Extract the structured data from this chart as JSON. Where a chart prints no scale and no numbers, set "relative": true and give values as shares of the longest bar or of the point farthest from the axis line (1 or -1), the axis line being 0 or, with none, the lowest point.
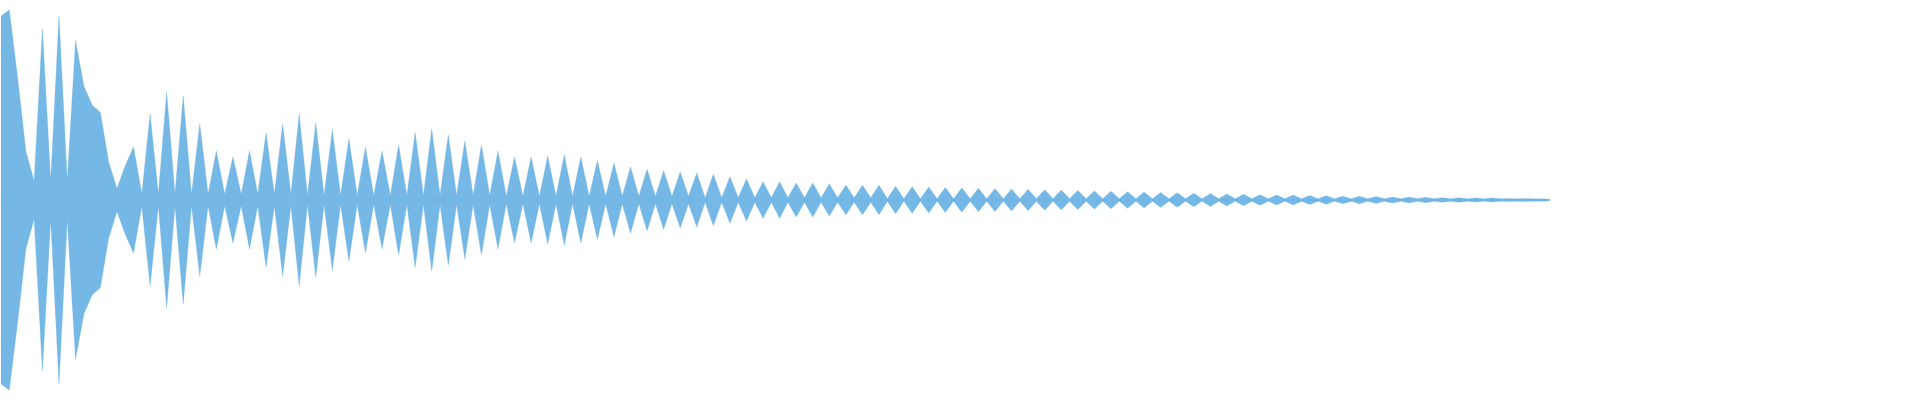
{
  "chart_data": {
    "type": "area",
    "relative": true,
    "legend": false,
    "tick_labels": false,
    "ref_lines": [
      {
        "axis": "y",
        "value": 0,
        "color": "#b4d6ef"
      }
    ],
    "categories": [
      null,
      null,
      null,
      null,
      null,
      null,
      null,
      null,
      null,
      null,
      null,
      null,
      null,
      null,
      null,
      null,
      null,
      null,
      null,
      null,
      null,
      null,
      null,
      null,
      null,
      null,
      null,
      null,
      null,
      null,
      null,
      null,
      null,
      null,
      null,
      null,
      null,
      null,
      null,
      null,
      null,
      null,
      null,
      null,
      null,
      null,
      null,
      null,
      null,
      null,
      null,
      null,
      null,
      null,
      null,
      null,
      null,
      null,
      null,
      null,
      null,
      null,
      null,
      null,
      null,
      null,
      null,
      null,
      null,
      null,
      null,
      null,
      null,
      null,
      null,
      null,
      null,
      null,
      null,
      null,
      null,
      null,
      null,
      null,
      null,
      null,
      null,
      null,
      null,
      null,
      null,
      null,
      null,
      null,
      null,
      null,
      null,
      null,
      null,
      null,
      null,
      null,
      null,
      null,
      null,
      null,
      null,
      null,
      null,
      null,
      null,
      null,
      null,
      null,
      null,
      null,
      null,
      null,
      null,
      null,
      null,
      null,
      null,
      null,
      null,
      null,
      null,
      null,
      null,
      null,
      null,
      null,
      null,
      null,
      null,
      null,
      null,
      null,
      null,
      null,
      null,
      null,
      null,
      null,
      null,
      null,
      null,
      null,
      null,
      null,
      null,
      null,
      null,
      null,
      null,
      null,
      null,
      null,
      null,
      null,
      null,
      null,
      null,
      null,
      null,
      null,
      null,
      null,
      null,
      null,
      null,
      null,
      null,
      null,
      null,
      null,
      null,
      null,
      null,
      null,
      null,
      null,
      null,
      null,
      null,
      null,
      null,
      null
    ],
    "series": [
      {
        "color": "#62aee3",
        "values": [
          0.968,
          1,
          0.646,
          0.258,
          0.1,
          0.9,
          0.1,
          0.968,
          0.1,
          0.84,
          0.6,
          0.5,
          0.46,
          0.2,
          0.06,
          0.18,
          0.28,
          0.032,
          0.452,
          0.03,
          0.568,
          0.03,
          0.548,
          0.03,
          0.4,
          0.03,
          0.258,
          0.03,
          0.226,
          0.03,
          0.258,
          0.03,
          0.354,
          0.03,
          0.4,
          0.03,
          0.452,
          0.024,
          0.406,
          0.024,
          0.368,
          0.024,
          0.322,
          0.024,
          0.278,
          0.024,
          0.258,
          0.024,
          0.29,
          0.024,
          0.354,
          0.024,
          0.374,
          0.024,
          0.342,
          0.024,
          0.31,
          0.024,
          0.29,
          0.024,
          0.258,
          0.02,
          0.226,
          0.02,
          0.226,
          0.02,
          0.232,
          0.02,
          0.238,
          0.02,
          0.226,
          0.02,
          0.206,
          0.02,
          0.194,
          0.02,
          0.174,
          0.02,
          0.162,
          0.02,
          0.154,
          0.02,
          0.148,
          0.02,
          0.142,
          0.012,
          0.136,
          0.012,
          0.122,
          0.012,
          0.11,
          0.012,
          0.096,
          0.012,
          0.096,
          0.012,
          0.09,
          0.012,
          0.09,
          0.012,
          0.084,
          0.012,
          0.078,
          0.012,
          0.078,
          0.012,
          0.078,
          0.006,
          0.072,
          0.006,
          0.07,
          0.006,
          0.068,
          0.006,
          0.066,
          0.006,
          0.064,
          0.006,
          0.062,
          0.006,
          0.06,
          0.006,
          0.058,
          0.006,
          0.056,
          0.006,
          0.054,
          0.006,
          0.052,
          0.006,
          0.05,
          0.006,
          0.048,
          0.006,
          0.046,
          0.006,
          0.044,
          0.006,
          0.042,
          0.006,
          0.04,
          0.006,
          0.038,
          0.006,
          0.036,
          0.006,
          0.034,
          0.006,
          0.032,
          0.006,
          0.03,
          0.006,
          0.028,
          0.006,
          0.026,
          0.006,
          0.026,
          0.006,
          0.024,
          0.006,
          0.022,
          0.006,
          0.02,
          0.006,
          0.02,
          0.006,
          0.018,
          0.006,
          0.016,
          0.006,
          0.016,
          0.006,
          0.014,
          0.006,
          0.012,
          0.006,
          0.012,
          0.006,
          0.01,
          0.006,
          0.01,
          0.006,
          0.008,
          0.006,
          0.008,
          0.006,
          0.006,
          0.004
        ]
      },
      {
        "color": "#62aee3",
        "values": [
          -0.968,
          -1,
          -0.646,
          -0.258,
          -0.1,
          -0.9,
          -0.1,
          -0.968,
          -0.1,
          -0.84,
          -0.6,
          -0.5,
          -0.46,
          -0.2,
          -0.06,
          -0.18,
          -0.28,
          -0.032,
          -0.452,
          -0.03,
          -0.568,
          -0.03,
          -0.548,
          -0.03,
          -0.4,
          -0.03,
          -0.258,
          -0.03,
          -0.226,
          -0.03,
          -0.258,
          -0.03,
          -0.354,
          -0.03,
          -0.4,
          -0.03,
          -0.452,
          -0.024,
          -0.406,
          -0.024,
          -0.368,
          -0.024,
          -0.322,
          -0.024,
          -0.278,
          -0.024,
          -0.258,
          -0.024,
          -0.29,
          -0.024,
          -0.354,
          -0.024,
          -0.374,
          -0.024,
          -0.342,
          -0.024,
          -0.31,
          -0.024,
          -0.29,
          -0.024,
          -0.258,
          -0.02,
          -0.226,
          -0.02,
          -0.226,
          -0.02,
          -0.232,
          -0.02,
          -0.238,
          -0.02,
          -0.226,
          -0.02,
          -0.206,
          -0.02,
          -0.194,
          -0.02,
          -0.174,
          -0.02,
          -0.162,
          -0.02,
          -0.154,
          -0.02,
          -0.148,
          -0.02,
          -0.142,
          -0.012,
          -0.136,
          -0.012,
          -0.122,
          -0.012,
          -0.11,
          -0.012,
          -0.096,
          -0.012,
          -0.096,
          -0.012,
          -0.09,
          -0.012,
          -0.09,
          -0.012,
          -0.084,
          -0.012,
          -0.078,
          -0.012,
          -0.078,
          -0.012,
          -0.078,
          -0.006,
          -0.072,
          -0.006,
          -0.07,
          -0.006,
          -0.068,
          -0.006,
          -0.066,
          -0.006,
          -0.064,
          -0.006,
          -0.062,
          -0.006,
          -0.06,
          -0.006,
          -0.058,
          -0.006,
          -0.056,
          -0.006,
          -0.054,
          -0.006,
          -0.052,
          -0.006,
          -0.05,
          -0.006,
          -0.048,
          -0.006,
          -0.046,
          -0.006,
          -0.044,
          -0.006,
          -0.042,
          -0.006,
          -0.04,
          -0.006,
          -0.038,
          -0.006,
          -0.036,
          -0.006,
          -0.034,
          -0.006,
          -0.032,
          -0.006,
          -0.03,
          -0.006,
          -0.028,
          -0.006,
          -0.026,
          -0.006,
          -0.026,
          -0.006,
          -0.024,
          -0.006,
          -0.022,
          -0.006,
          -0.02,
          -0.006,
          -0.02,
          -0.006,
          -0.018,
          -0.006,
          -0.016,
          -0.006,
          -0.016,
          -0.006,
          -0.014,
          -0.006,
          -0.012,
          -0.006,
          -0.012,
          -0.006,
          -0.01,
          -0.006,
          -0.01,
          -0.006,
          -0.008,
          -0.006,
          -0.008,
          -0.006,
          -0.006,
          -0.004
        ]
      }
    ]
  }
}
